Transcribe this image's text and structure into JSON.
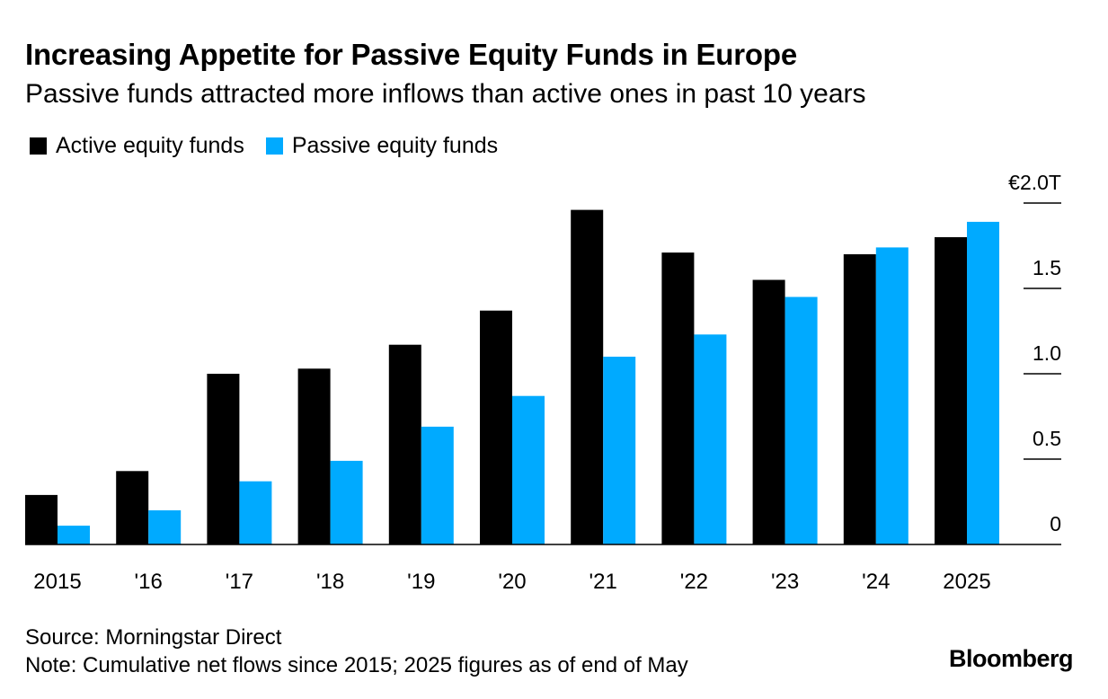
{
  "header": {
    "title": "Increasing Appetite for Passive Equity Funds in Europe",
    "subtitle": "Passive funds attracted more inflows than active ones in past 10 years"
  },
  "colors": {
    "active": "#000000",
    "passive": "#00aaff",
    "axis": "#000000"
  },
  "chart_data": {
    "type": "bar",
    "title": "Increasing Appetite for Passive Equity Funds in Europe",
    "subtitle": "Passive funds attracted more inflows than active ones in past 10 years",
    "categories": [
      "2015",
      "'16",
      "'17",
      "'18",
      "'19",
      "'20",
      "'21",
      "'22",
      "'23",
      "'24",
      "2025"
    ],
    "series": [
      {
        "name": "Active equity funds",
        "values": [
          0.29,
          0.43,
          1.0,
          1.03,
          1.17,
          1.37,
          1.96,
          1.71,
          1.55,
          1.7,
          1.8
        ]
      },
      {
        "name": "Passive equity funds",
        "values": [
          0.11,
          0.2,
          0.37,
          0.49,
          0.69,
          0.87,
          1.1,
          1.23,
          1.45,
          1.74,
          1.89
        ]
      }
    ],
    "xlabel": "",
    "ylabel": "",
    "ylim": [
      0,
      2.0
    ],
    "yticks": [
      0,
      0.5,
      1.0,
      1.5,
      2.0
    ],
    "ytick_labels": [
      "0",
      "0.5",
      "1.0",
      "1.5",
      "€2.0T"
    ],
    "y_axis_side": "right",
    "legend_position": "top-left",
    "grid": false
  },
  "legend": {
    "active_label": "Active equity funds",
    "passive_label": "Passive equity funds"
  },
  "footer": {
    "source": "Source: Morningstar Direct",
    "note": "Note: Cumulative net flows since 2015; 2025 figures as of end of May",
    "brand": "Bloomberg"
  }
}
